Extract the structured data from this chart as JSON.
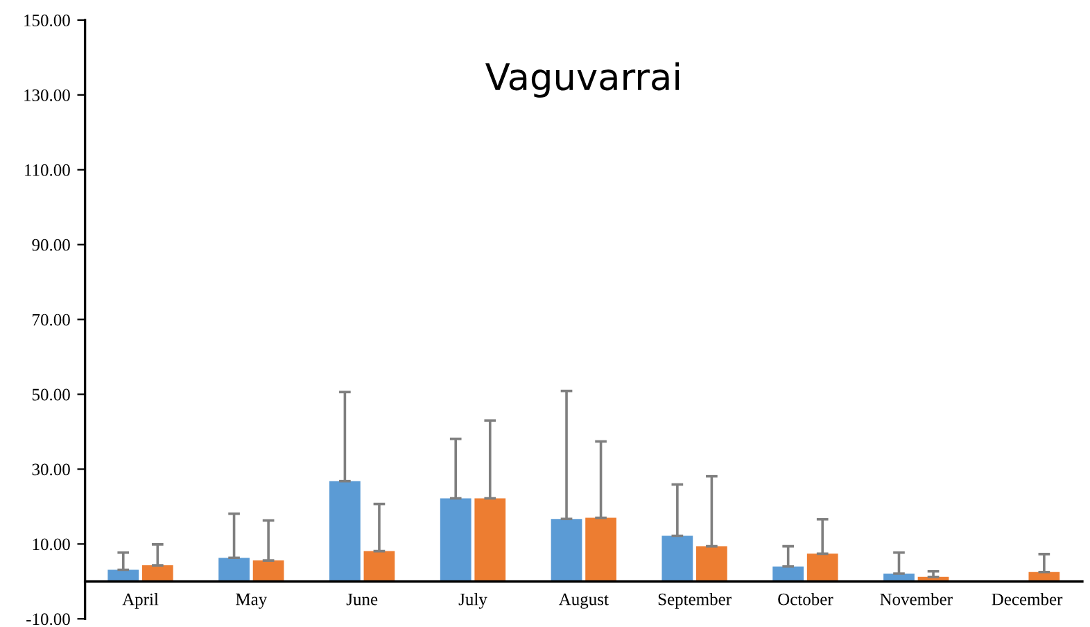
{
  "chart_data": {
    "type": "bar",
    "title": "Vaguvarrai",
    "categories": [
      "April",
      "May",
      "June",
      "July",
      "August",
      "September",
      "October",
      "November",
      "December"
    ],
    "series": [
      {
        "color": "#5b9bd5",
        "values": [
          3.1,
          6.3,
          26.8,
          22.2,
          16.7,
          12.2,
          4.0,
          2.1,
          0
        ],
        "errors": [
          [
            3.1,
            7.7
          ],
          [
            6.3,
            18.1
          ],
          [
            26.8,
            50.6
          ],
          [
            22.2,
            38.1
          ],
          [
            16.7,
            50.9
          ],
          [
            12.2,
            25.9
          ],
          [
            4.0,
            9.4
          ],
          [
            2.1,
            7.7
          ],
          null
        ]
      },
      {
        "color": "#ed7d31",
        "values": [
          4.3,
          5.6,
          8.1,
          22.2,
          17.0,
          9.4,
          7.4,
          1.2,
          2.5
        ],
        "errors": [
          [
            4.3,
            9.9
          ],
          [
            5.6,
            16.3
          ],
          [
            8.1,
            20.7
          ],
          [
            22.2,
            43.0
          ],
          [
            17.0,
            37.4
          ],
          [
            9.4,
            28.1
          ],
          [
            7.4,
            16.6
          ],
          [
            1.2,
            2.7
          ],
          [
            2.5,
            7.3
          ]
        ]
      }
    ],
    "ylim": [
      -10,
      150
    ],
    "yticks": [
      {
        "value": -10,
        "label": "-10.00"
      },
      {
        "value": 10,
        "label": "10.00"
      },
      {
        "value": 30,
        "label": "30.00"
      },
      {
        "value": 50,
        "label": "50.00"
      },
      {
        "value": 70,
        "label": "70.00"
      },
      {
        "value": 90,
        "label": "90.00"
      },
      {
        "value": 110,
        "label": "110.00"
      },
      {
        "value": 130,
        "label": "130.00"
      },
      {
        "value": 150,
        "label": "150.00"
      }
    ],
    "grid": false,
    "legend": false
  }
}
